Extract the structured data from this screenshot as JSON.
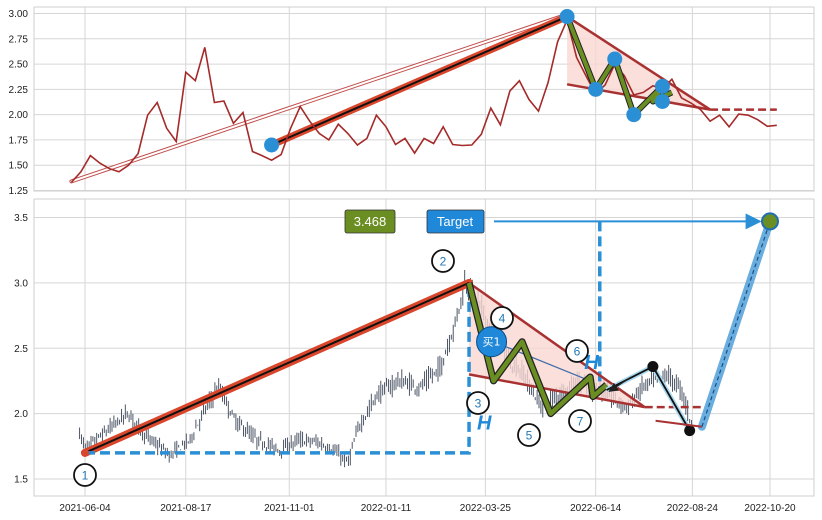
{
  "chart_data": [
    {
      "type": "line",
      "panel": "top",
      "series_color": "#a52a2a",
      "ylim": [
        1.25,
        3.05
      ],
      "yticks": [
        1.25,
        1.5,
        1.75,
        2.0,
        2.25,
        2.5,
        2.75,
        3.0
      ],
      "ytick_labels": [
        "1.25",
        "1.50",
        "1.75",
        "2.00",
        "2.25",
        "2.50",
        "2.75",
        "3.00"
      ],
      "price": [
        [
          "2021-05-25",
          1.33
        ],
        [
          "2021-06-01",
          1.45
        ],
        [
          "2021-06-08",
          1.58
        ],
        [
          "2021-06-15",
          1.52
        ],
        [
          "2021-06-22",
          1.48
        ],
        [
          "2021-06-29",
          1.42
        ],
        [
          "2021-07-06",
          1.5
        ],
        [
          "2021-07-13",
          1.63
        ],
        [
          "2021-07-20",
          1.98
        ],
        [
          "2021-07-27",
          2.12
        ],
        [
          "2021-08-03",
          1.88
        ],
        [
          "2021-08-10",
          1.72
        ],
        [
          "2021-08-17",
          2.42
        ],
        [
          "2021-08-24",
          2.35
        ],
        [
          "2021-08-31",
          2.65
        ],
        [
          "2021-09-07",
          2.12
        ],
        [
          "2021-09-14",
          2.15
        ],
        [
          "2021-09-21",
          1.9
        ],
        [
          "2021-09-28",
          2.02
        ],
        [
          "2021-10-05",
          1.65
        ],
        [
          "2021-10-12",
          1.58
        ],
        [
          "2021-10-19",
          1.55
        ],
        [
          "2021-10-26",
          1.62
        ],
        [
          "2021-11-02",
          1.85
        ],
        [
          "2021-11-09",
          2.08
        ],
        [
          "2021-11-16",
          1.95
        ],
        [
          "2021-11-23",
          1.8
        ],
        [
          "2021-11-30",
          1.75
        ],
        [
          "2021-12-07",
          1.92
        ],
        [
          "2021-12-14",
          1.8
        ],
        [
          "2021-12-21",
          1.7
        ],
        [
          "2021-12-28",
          1.78
        ],
        [
          "2022-01-04",
          1.98
        ],
        [
          "2022-01-11",
          1.88
        ],
        [
          "2022-01-18",
          1.72
        ],
        [
          "2022-01-25",
          1.75
        ],
        [
          "2022-02-01",
          1.62
        ],
        [
          "2022-02-08",
          1.78
        ],
        [
          "2022-02-15",
          1.7
        ],
        [
          "2022-02-22",
          1.88
        ],
        [
          "2022-03-01",
          1.72
        ],
        [
          "2022-03-08",
          1.68
        ],
        [
          "2022-03-15",
          1.7
        ],
        [
          "2022-03-22",
          1.82
        ],
        [
          "2022-03-29",
          2.05
        ],
        [
          "2022-04-05",
          1.9
        ],
        [
          "2022-04-12",
          2.25
        ],
        [
          "2022-04-19",
          2.32
        ],
        [
          "2022-04-26",
          2.15
        ],
        [
          "2022-05-03",
          2.05
        ],
        [
          "2022-05-10",
          2.3
        ],
        [
          "2022-05-17",
          2.72
        ],
        [
          "2022-05-24",
          2.95
        ],
        [
          "2022-05-31",
          2.55
        ],
        [
          "2022-06-07",
          2.38
        ],
        [
          "2022-06-14",
          2.22
        ],
        [
          "2022-06-21",
          2.28
        ],
        [
          "2022-06-28",
          2.5
        ],
        [
          "2022-07-05",
          2.4
        ],
        [
          "2022-07-12",
          2.18
        ],
        [
          "2022-07-19",
          2.22
        ],
        [
          "2022-07-26",
          2.3
        ],
        [
          "2022-08-02",
          2.24
        ],
        [
          "2022-08-09",
          2.35
        ],
        [
          "2022-08-16",
          2.18
        ],
        [
          "2022-08-23",
          2.1
        ],
        [
          "2022-08-30",
          2.05
        ],
        [
          "2022-09-06",
          1.95
        ],
        [
          "2022-09-13",
          1.98
        ],
        [
          "2022-09-20",
          1.88
        ],
        [
          "2022-09-27",
          2.02
        ],
        [
          "2022-10-04",
          1.98
        ],
        [
          "2022-10-11",
          1.95
        ],
        [
          "2022-10-18",
          1.9
        ],
        [
          "2022-10-25",
          1.88
        ]
      ],
      "pivots": [
        [
          "2021-10-19",
          1.7
        ],
        [
          "2022-05-24",
          2.97
        ],
        [
          "2022-06-14",
          2.25
        ],
        [
          "2022-06-28",
          2.55
        ],
        [
          "2022-07-12",
          2.0
        ],
        [
          "2022-08-02",
          2.28
        ],
        [
          "2022-07-26",
          2.13
        ],
        [
          "2022-08-02",
          2.29
        ]
      ]
    },
    {
      "type": "candlestick",
      "panel": "bottom",
      "ylim": [
        1.42,
        3.62
      ],
      "yticks": [
        1.5,
        2.0,
        2.5,
        3.0,
        3.5
      ],
      "ytick_labels": [
        "1.5",
        "2.0",
        "2.5",
        "3.0",
        "3.5"
      ],
      "xticks": [
        "2021-06-04",
        "2021-08-17",
        "2021-11-01",
        "2022-01-11",
        "2022-03-25",
        "2022-06-14",
        "2022-08-24",
        "2022-10-20"
      ],
      "price_anchors": [
        [
          "2021-05-31",
          1.85
        ],
        [
          "2021-06-04",
          1.73
        ],
        [
          "2021-06-18",
          1.85
        ],
        [
          "2021-07-05",
          2.0
        ],
        [
          "2021-07-20",
          1.82
        ],
        [
          "2021-08-05",
          1.68
        ],
        [
          "2021-08-20",
          1.8
        ],
        [
          "2021-09-01",
          2.05
        ],
        [
          "2021-09-10",
          2.2
        ],
        [
          "2021-09-22",
          1.95
        ],
        [
          "2021-10-08",
          1.8
        ],
        [
          "2021-10-25",
          1.72
        ],
        [
          "2021-11-08",
          1.8
        ],
        [
          "2021-11-22",
          1.78
        ],
        [
          "2021-12-06",
          1.7
        ],
        [
          "2021-12-14",
          1.62
        ],
        [
          "2021-12-22",
          1.9
        ],
        [
          "2022-01-05",
          2.15
        ],
        [
          "2022-01-20",
          2.25
        ],
        [
          "2022-02-05",
          2.2
        ],
        [
          "2022-02-20",
          2.35
        ],
        [
          "2022-03-03",
          2.7
        ],
        [
          "2022-03-10",
          3.0
        ],
        [
          "2022-03-20",
          2.85
        ],
        [
          "2022-04-01",
          2.6
        ],
        [
          "2022-04-12",
          2.4
        ],
        [
          "2022-04-22",
          2.3
        ],
        [
          "2022-05-05",
          2.05
        ],
        [
          "2022-05-18",
          2.15
        ],
        [
          "2022-06-01",
          2.25
        ],
        [
          "2022-06-10",
          2.18
        ],
        [
          "2022-06-17",
          2.2
        ],
        [
          "2022-06-28",
          2.1
        ],
        [
          "2022-07-08",
          2.05
        ],
        [
          "2022-07-18",
          2.2
        ],
        [
          "2022-07-26",
          2.25
        ],
        [
          "2022-08-05",
          2.3
        ],
        [
          "2022-08-16",
          2.18
        ],
        [
          "2022-08-24",
          1.9
        ]
      ],
      "wave_labels": [
        "1",
        "2",
        "3",
        "4",
        "5",
        "6",
        "7"
      ],
      "waves": [
        [
          "2021-06-04",
          1.7
        ],
        [
          "2022-03-13",
          3.0
        ],
        [
          "2022-03-31",
          2.25
        ],
        [
          "2022-04-21",
          2.55
        ],
        [
          "2022-05-12",
          2.0
        ],
        [
          "2022-06-10",
          2.28
        ],
        [
          "2022-06-12",
          2.13
        ],
        [
          "2022-06-22",
          2.22
        ]
      ],
      "h_label": "H",
      "buy_label": "买1",
      "value_label": "3.468",
      "target_label": "Target",
      "target": [
        "2022-10-20",
        3.47
      ],
      "black_points": [
        [
          "2022-07-26",
          2.36
        ],
        [
          "2022-08-22",
          1.87
        ]
      ]
    }
  ],
  "colors": {
    "price_top": "#a52a2a",
    "trend_red": "#d9462b",
    "triangle_line": "#a83232",
    "triangle_fill": "#f9d7d2",
    "wave_green": "#6b8e23",
    "pivot_blue": "#2b8fd6",
    "dash_blue": "#2b8fd6",
    "value_box": "#6b8e23",
    "target_box": "#1f88d8",
    "candle": "#3a4457"
  }
}
